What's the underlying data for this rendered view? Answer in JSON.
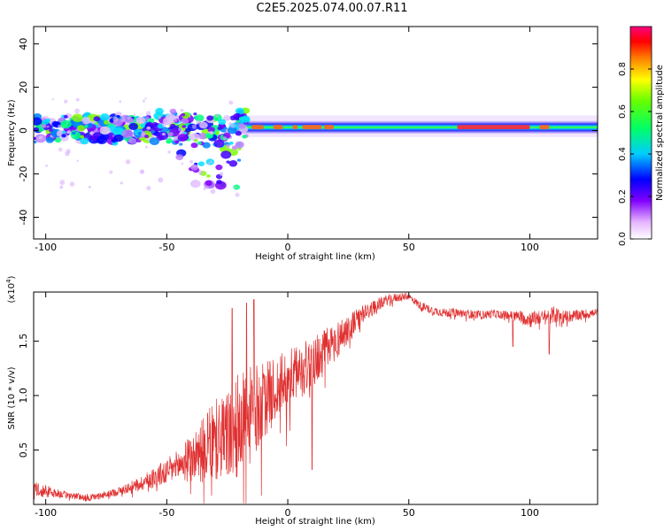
{
  "title": "C2E5.2025.074.00.07.R11",
  "colors": {
    "snr_line": "#e03030",
    "frame": "#000000",
    "background": "#ffffff"
  },
  "chart_data": [
    {
      "type": "heatmap",
      "name": "spectrogram",
      "xlabel": "Height of straight line (km)",
      "ylabel": "Frequency (Hz)",
      "xlim": [
        -105,
        128
      ],
      "ylim": [
        -50,
        48
      ],
      "xticks": [
        -100,
        -50,
        0,
        50,
        100
      ],
      "yticks": [
        40,
        20,
        0,
        -20,
        -40
      ],
      "colorbar": {
        "label": "Normalized spectral amplitude",
        "range": [
          0,
          1
        ],
        "ticks": [
          "0.0",
          "0.2",
          "0.4",
          "0.6",
          "0.8"
        ],
        "tick_values": [
          0.0,
          0.2,
          0.4,
          0.6,
          0.8
        ]
      }
    },
    {
      "type": "line",
      "name": "snr",
      "xlabel": "Height of straight line (km)",
      "ylabel": "SNR (10 * v/v)",
      "y_multiplier": "(x10",
      "y_multiplier_exp": "4",
      "y_multiplier_close": ")",
      "xlim": [
        -105,
        128
      ],
      "ylim": [
        0,
        1.95
      ],
      "xticks": [
        -100,
        -50,
        0,
        50,
        100
      ],
      "yticks": [
        0.5,
        1.0,
        1.5
      ],
      "ytick_labels": [
        "0.5",
        "1.0",
        "1.5"
      ],
      "trend": {
        "x": [
          -105,
          -100,
          -95,
          -90,
          -85,
          -80,
          -75,
          -70,
          -65,
          -60,
          -55,
          -50,
          -45,
          -40,
          -35,
          -30,
          -25,
          -20,
          -15,
          -10,
          -5,
          0,
          5,
          10,
          15,
          20,
          25,
          30,
          35,
          40,
          45,
          50,
          55,
          60,
          65,
          70,
          75,
          80,
          85,
          90,
          95,
          100,
          105,
          110,
          115,
          120,
          128
        ],
        "y": [
          0.15,
          0.12,
          0.1,
          0.08,
          0.07,
          0.07,
          0.09,
          0.12,
          0.16,
          0.2,
          0.25,
          0.3,
          0.36,
          0.42,
          0.5,
          0.58,
          0.64,
          0.72,
          0.82,
          0.95,
          1.05,
          1.15,
          1.22,
          1.3,
          1.4,
          1.5,
          1.62,
          1.72,
          1.8,
          1.87,
          1.9,
          1.91,
          1.82,
          1.78,
          1.76,
          1.76,
          1.75,
          1.74,
          1.75,
          1.74,
          1.73,
          1.7,
          1.72,
          1.74,
          1.72,
          1.74,
          1.76
        ],
        "noise": [
          0.06,
          0.06,
          0.04,
          0.03,
          0.03,
          0.03,
          0.03,
          0.04,
          0.05,
          0.07,
          0.1,
          0.12,
          0.15,
          0.22,
          0.3,
          0.38,
          0.42,
          0.5,
          0.45,
          0.35,
          0.3,
          0.28,
          0.25,
          0.25,
          0.22,
          0.18,
          0.14,
          0.1,
          0.07,
          0.05,
          0.04,
          0.03,
          0.04,
          0.04,
          0.04,
          0.04,
          0.04,
          0.04,
          0.04,
          0.04,
          0.05,
          0.08,
          0.06,
          0.08,
          0.06,
          0.05,
          0.04
        ]
      },
      "spikes": [
        {
          "x": -23,
          "y": 1.8
        },
        {
          "x": -17,
          "y": 1.85
        },
        {
          "x": -14,
          "y": 1.88
        },
        {
          "x": 10,
          "y": 0.32
        },
        {
          "x": 93,
          "y": 1.45
        },
        {
          "x": 108,
          "y": 1.38
        }
      ]
    }
  ]
}
